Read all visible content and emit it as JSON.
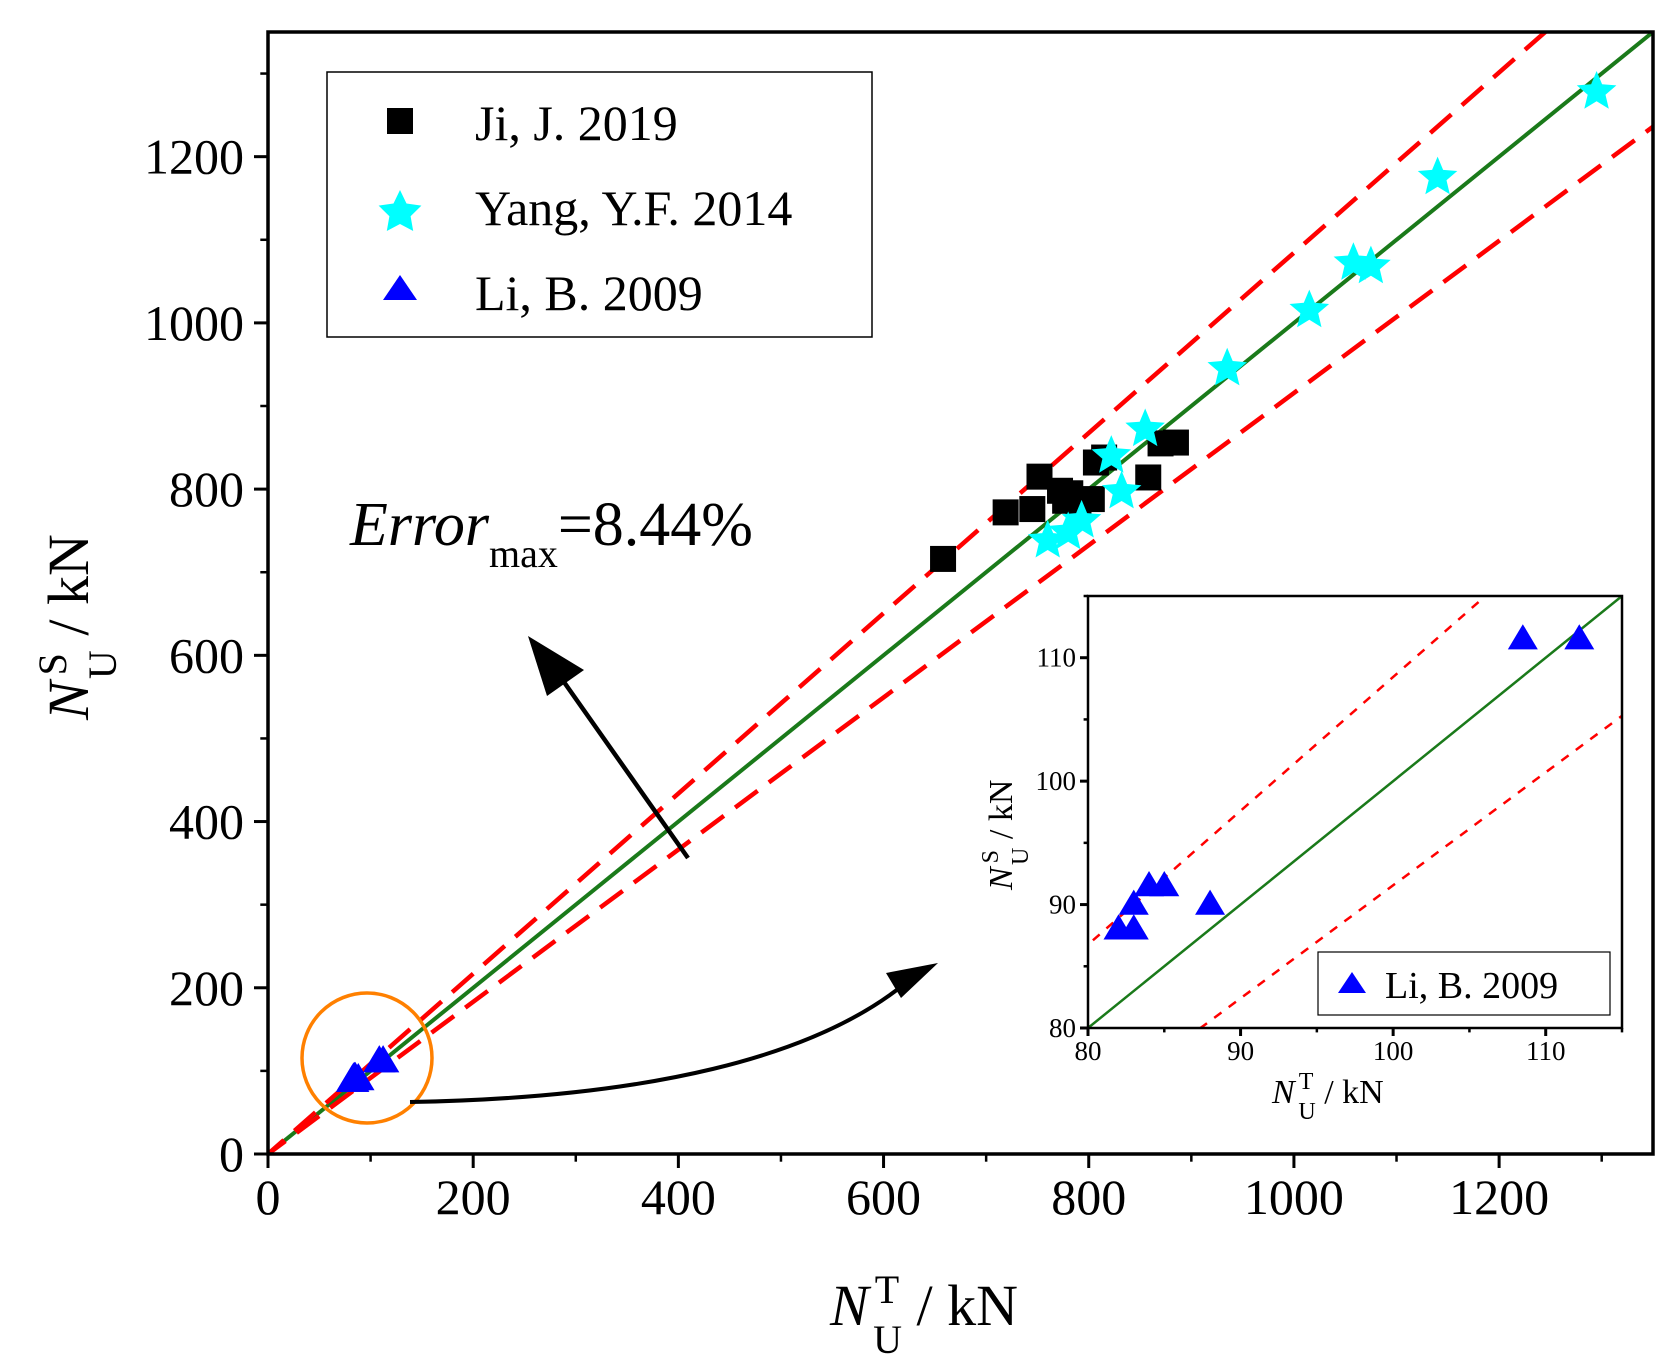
{
  "chart_data": {
    "type": "scatter",
    "xlabel": {
      "main": "N",
      "sup": "T",
      "sub": "U",
      "unit": " / kN"
    },
    "ylabel": {
      "main": "N",
      "sup": "S",
      "sub": "U",
      "unit": " / kN"
    },
    "xlim": [
      0,
      1350
    ],
    "ylim": [
      0,
      1350
    ],
    "xticks": [
      0,
      200,
      400,
      600,
      800,
      1000,
      1200
    ],
    "yticks": [
      0,
      200,
      400,
      600,
      800,
      1000,
      1200
    ],
    "annotation": {
      "italic": "Error",
      "sub": "max",
      "value": "=8.44%"
    },
    "reference_lines": [
      {
        "name": "",
        "slope": 1.0,
        "color": "#1a7a1a",
        "style": "solid"
      },
      {
        "name": "",
        "slope": 1.0844,
        "color": "#ff0000",
        "style": "dashed"
      },
      {
        "name": "",
        "slope": 0.9156,
        "color": "#ff0000",
        "style": "dashed"
      }
    ],
    "legend_position": "top-left",
    "series": [
      {
        "name": "Ji, J. 2019",
        "marker": "square",
        "color": "#000000",
        "points": [
          [
            658,
            716
          ],
          [
            719,
            772
          ],
          [
            745,
            776
          ],
          [
            752,
            815
          ],
          [
            772,
            798
          ],
          [
            782,
            795
          ],
          [
            777,
            786
          ],
          [
            790,
            785
          ],
          [
            803,
            788
          ],
          [
            807,
            832
          ],
          [
            815,
            838
          ],
          [
            858,
            814
          ],
          [
            870,
            855
          ],
          [
            885,
            856
          ]
        ]
      },
      {
        "name": "Yang, Y.F. 2014",
        "marker": "star",
        "color": "#00ffff",
        "points": [
          [
            760,
            738
          ],
          [
            780,
            748
          ],
          [
            793,
            762
          ],
          [
            822,
            840
          ],
          [
            832,
            797
          ],
          [
            855,
            872
          ],
          [
            935,
            945
          ],
          [
            1015,
            1015
          ],
          [
            1058,
            1072
          ],
          [
            1075,
            1068
          ],
          [
            1140,
            1175
          ],
          [
            1295,
            1278
          ]
        ]
      },
      {
        "name": "Li, B. 2009",
        "marker": "triangle",
        "color": "#0000ff",
        "points": [
          [
            82,
            88
          ],
          [
            83,
            88
          ],
          [
            83,
            90
          ],
          [
            84,
            91.5
          ],
          [
            85,
            91.5
          ],
          [
            88,
            90
          ],
          [
            108.5,
            111.5
          ],
          [
            112.2,
            111.5
          ]
        ]
      }
    ],
    "inset": {
      "xlabel": {
        "main": "N",
        "sup": "T",
        "sub": "U",
        "unit": " / kN"
      },
      "ylabel": {
        "main": "N",
        "sup": "S",
        "sub": "U",
        "unit": " / kN"
      },
      "xlim": [
        80,
        115
      ],
      "ylim": [
        80,
        115
      ],
      "xticks": [
        80,
        90,
        100,
        110
      ],
      "yticks": [
        80,
        90,
        100,
        110
      ],
      "legend_position": "bottom-right",
      "series": [
        {
          "name": "Li, B. 2009",
          "marker": "triangle",
          "color": "#0000ff",
          "points": [
            [
              82,
              88
            ],
            [
              83,
              88
            ],
            [
              83,
              90
            ],
            [
              84,
              91.5
            ],
            [
              85,
              91.5
            ],
            [
              88,
              90
            ],
            [
              108.5,
              111.5
            ],
            [
              112.2,
              111.5
            ]
          ]
        }
      ]
    }
  }
}
